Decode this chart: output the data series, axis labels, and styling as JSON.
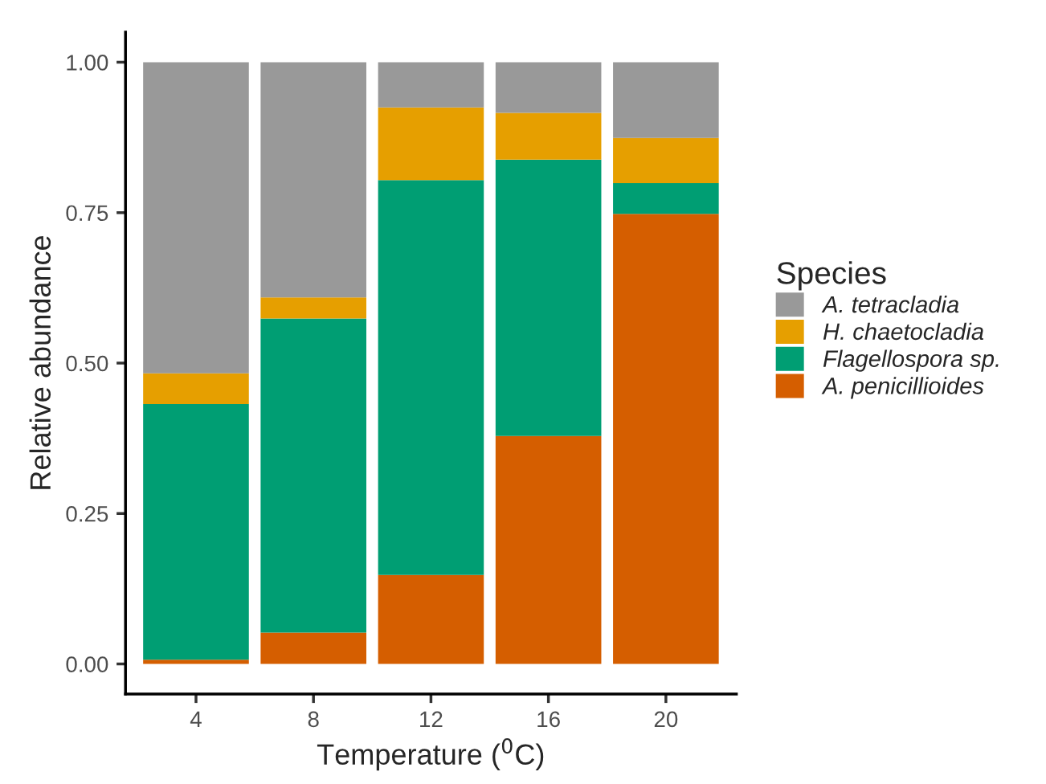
{
  "chart_data": {
    "type": "bar",
    "stacked": true,
    "xlabel": "Temperature ($^{0}$C)",
    "ylabel": "Relative abundance",
    "legend_title": "Species",
    "legend": "right",
    "grid": false,
    "categories": [
      "4",
      "8",
      "12",
      "16",
      "20"
    ],
    "ylim": [
      -0.05,
      1.05
    ],
    "yticks": [
      {
        "value": 0,
        "label": "0.00"
      },
      {
        "value": 0.25,
        "label": "0.25"
      },
      {
        "value": 0.5,
        "label": "0.50"
      },
      {
        "value": 0.75,
        "label": "0.75"
      },
      {
        "value": 1,
        "label": "1.00"
      }
    ],
    "series": [
      {
        "name": "A. penicillioides",
        "color": "#d55e00",
        "values": [
          0.007,
          0.052,
          0.148,
          0.379,
          0.748
        ]
      },
      {
        "name": "Flagellospora sp.",
        "color": "#009e73",
        "values": [
          0.425,
          0.522,
          0.656,
          0.459,
          0.051
        ]
      },
      {
        "name": "H. chaetocladia",
        "color": "#e69f00",
        "values": [
          0.051,
          0.035,
          0.121,
          0.078,
          0.075
        ]
      },
      {
        "name": "A. tetracladia",
        "color": "#999999",
        "values": [
          0.517,
          0.391,
          0.075,
          0.084,
          0.126
        ]
      }
    ]
  }
}
